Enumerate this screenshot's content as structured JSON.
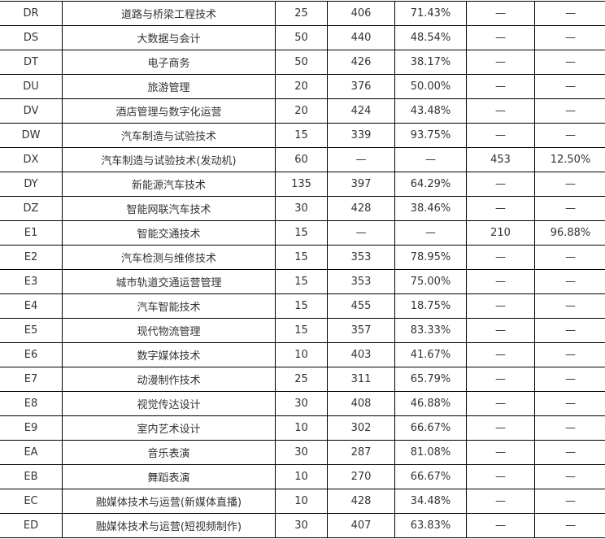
{
  "rows": [
    [
      "DR",
      "道路与桥梁工程技术",
      "25",
      "406",
      "71.43%",
      "—",
      "—"
    ],
    [
      "DS",
      "大数据与会计",
      "50",
      "440",
      "48.54%",
      "—",
      "—"
    ],
    [
      "DT",
      "电子商务",
      "50",
      "426",
      "38.17%",
      "—",
      "—"
    ],
    [
      "DU",
      "旅游管理",
      "20",
      "376",
      "50.00%",
      "—",
      "—"
    ],
    [
      "DV",
      "酒店管理与数字化运营",
      "20",
      "424",
      "43.48%",
      "—",
      "—"
    ],
    [
      "DW",
      "汽车制造与试验技术",
      "15",
      "339",
      "93.75%",
      "—",
      "—"
    ],
    [
      "DX",
      "汽车制造与试验技术(发动机)",
      "60",
      "—",
      "—",
      "453",
      "12.50%"
    ],
    [
      "DY",
      "新能源汽车技术",
      "135",
      "397",
      "64.29%",
      "—",
      "—"
    ],
    [
      "DZ",
      "智能网联汽车技术",
      "30",
      "428",
      "38.46%",
      "—",
      "—"
    ],
    [
      "E1",
      "智能交通技术",
      "15",
      "—",
      "—",
      "210",
      "96.88%"
    ],
    [
      "E2",
      "汽车检测与维修技术",
      "15",
      "353",
      "78.95%",
      "—",
      "—"
    ],
    [
      "E3",
      "城市轨道交通运营管理",
      "15",
      "353",
      "75.00%",
      "—",
      "—"
    ],
    [
      "E4",
      "汽车智能技术",
      "15",
      "455",
      "18.75%",
      "—",
      "—"
    ],
    [
      "E5",
      "现代物流管理",
      "15",
      "357",
      "83.33%",
      "—",
      "—"
    ],
    [
      "E6",
      "数字媒体技术",
      "10",
      "403",
      "41.67%",
      "—",
      "—"
    ],
    [
      "E7",
      "动漫制作技术",
      "25",
      "311",
      "65.79%",
      "—",
      "—"
    ],
    [
      "E8",
      "视觉传达设计",
      "30",
      "408",
      "46.88%",
      "—",
      "—"
    ],
    [
      "E9",
      "室内艺术设计",
      "10",
      "302",
      "66.67%",
      "—",
      "—"
    ],
    [
      "EA",
      "音乐表演",
      "30",
      "287",
      "81.08%",
      "—",
      "—"
    ],
    [
      "EB",
      "舞蹈表演",
      "10",
      "270",
      "66.67%",
      "—",
      "—"
    ],
    [
      "EC",
      "融媒体技术与运营(新媒体直播)",
      "10",
      "428",
      "34.48%",
      "—",
      "—"
    ],
    [
      "ED",
      "融媒体技术与运营(短视频制作)",
      "30",
      "407",
      "63.83%",
      "—",
      "—"
    ]
  ]
}
